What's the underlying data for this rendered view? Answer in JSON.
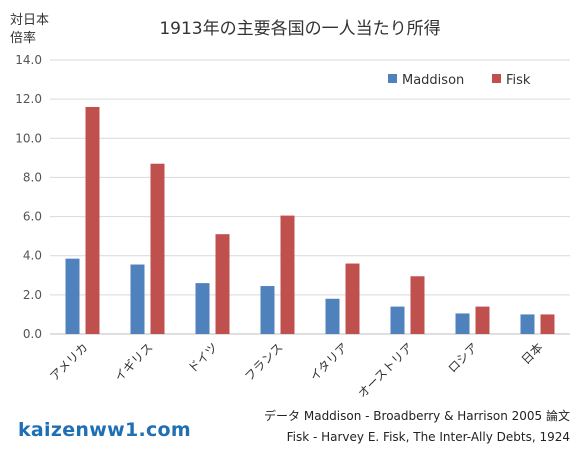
{
  "footer": {
    "brand": "kaizenww1.com",
    "source_line1": "データ Maddison - Broadberry & Harrison 2005 論文",
    "source_line2": "Fisk - Harvey E. Fisk, The Inter-Ally Debts, 1924"
  },
  "chart_data": {
    "type": "bar",
    "title": "1913年の主要各国の一人当たり所得",
    "ylabel_line1": "対日本",
    "ylabel_line2": "倍率",
    "xlabel": "",
    "ylim": [
      0,
      14
    ],
    "yticks": [
      "0.0",
      "2.0",
      "4.0",
      "6.0",
      "8.0",
      "10.0",
      "12.0",
      "14.0"
    ],
    "grid": true,
    "legend_position": "top-right",
    "categories": [
      "アメリカ",
      "イギリス",
      "ドイツ",
      "フランス",
      "イタリア",
      "オーストリア",
      "ロシア",
      "日本"
    ],
    "series": [
      {
        "name": "Maddison",
        "color": "#4f81bd",
        "values": [
          3.85,
          3.55,
          2.6,
          2.45,
          1.8,
          1.4,
          1.05,
          1.0
        ]
      },
      {
        "name": "Fisk",
        "color": "#c0504d",
        "values": [
          11.6,
          8.7,
          5.1,
          6.05,
          3.6,
          2.95,
          1.4,
          1.0
        ]
      }
    ]
  }
}
